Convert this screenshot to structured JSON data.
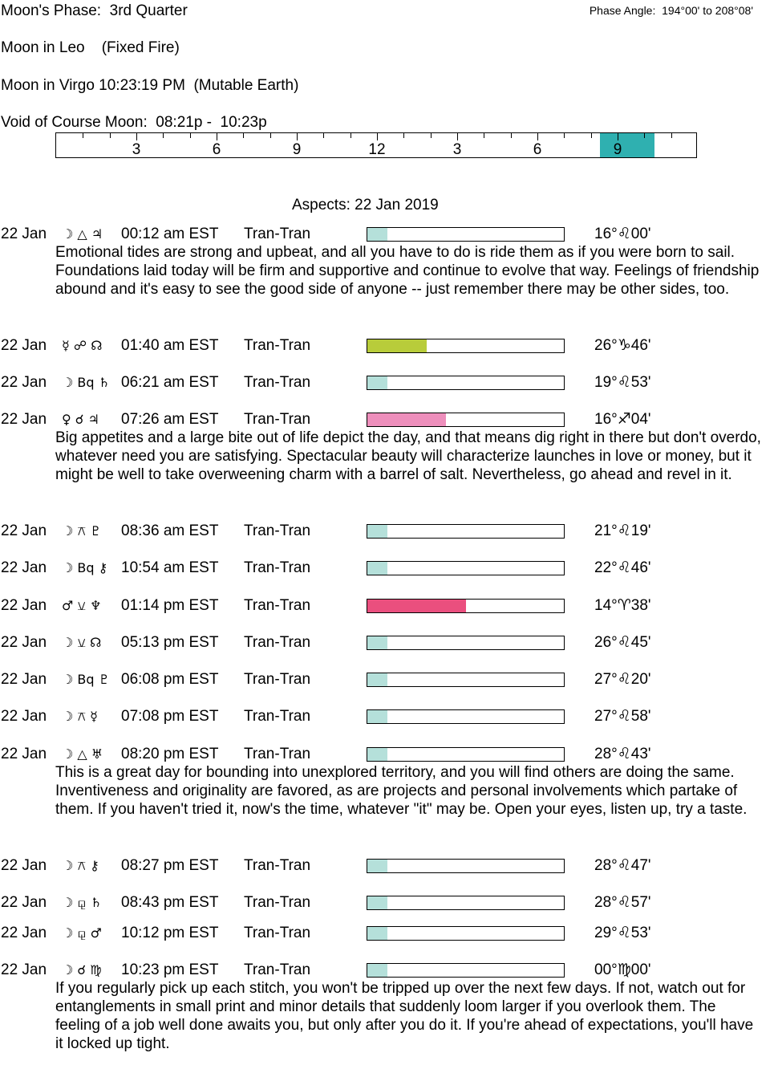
{
  "header": {
    "moon_phase": "Moon's Phase:  3rd Quarter",
    "phase_angle": "Phase Angle:  194°00' to 208°08'",
    "moon_sign_1": "Moon in Leo    (Fixed Fire)",
    "moon_sign_2": "Moon in Virgo 10:23:19 PM  (Mutable Earth)",
    "void_of_course": "Void of Course Moon:  08:21p -  10:23p"
  },
  "timeline": {
    "labels": [
      "3",
      "6",
      "9",
      "12",
      "3",
      "6",
      "9"
    ],
    "highlight_start_hour": 20.35,
    "highlight_end_hour": 22.38,
    "highlight_color": "#2fb0b0"
  },
  "aspects_title": "Aspects: 22 Jan 2019",
  "aspects": [
    {
      "date": "22 Jan",
      "glyphs": "☽ △ ♃",
      "time": "00:12 am EST",
      "type": "Tran-Tran",
      "strength": 0.1,
      "color": "#b5e0da",
      "position": "16°♌00'",
      "interpretation": "Emotional tides are strong and upbeat, and all you have to do is ride them as if you were born to sail. Foundations laid today will be firm and supportive and continue to evolve that way. Feelings of friendship abound and it's easy to see the good side of anyone -- just remember there may be other sides, too."
    },
    {
      "date": "22 Jan",
      "glyphs": "☿ ☍ ☊",
      "time": "01:40 am EST",
      "type": "Tran-Tran",
      "strength": 0.3,
      "color": "#b8cc3a",
      "position": "26°♑46'",
      "interpretation": ""
    },
    {
      "date": "22 Jan",
      "glyphs": "☽ Bq ♄",
      "time": "06:21 am EST",
      "type": "Tran-Tran",
      "strength": 0.1,
      "color": "#b5e0da",
      "position": "19°♌53'",
      "interpretation": ""
    },
    {
      "date": "22 Jan",
      "glyphs": "♀ ☌ ♃",
      "time": "07:26 am EST",
      "type": "Tran-Tran",
      "strength": 0.4,
      "color": "#ee8fbc",
      "position": "16°♐04'",
      "interpretation": "Big appetites and a large bite out of life depict the day, and that means dig right in there but don't overdo, whatever need you are satisfying. Spectacular beauty will characterize launches in love or money, but it might be well to take overweening charm with a barrel of salt. Nevertheless, go ahead and revel in it."
    },
    {
      "date": "22 Jan",
      "glyphs": "☽ ⚻ ♇",
      "time": "08:36 am EST",
      "type": "Tran-Tran",
      "strength": 0.1,
      "color": "#b5e0da",
      "position": "21°♌19'",
      "interpretation": ""
    },
    {
      "date": "22 Jan",
      "glyphs": "☽ Bq ⚷",
      "time": "10:54 am EST",
      "type": "Tran-Tran",
      "strength": 0.1,
      "color": "#b5e0da",
      "position": "22°♌46'",
      "interpretation": ""
    },
    {
      "date": "22 Jan",
      "glyphs": "♂ ⚺ ♆",
      "time": "01:14 pm EST",
      "type": "Tran-Tran",
      "strength": 0.5,
      "color": "#ea4f7e",
      "position": "14°♈38'",
      "interpretation": ""
    },
    {
      "date": "22 Jan",
      "glyphs": "☽ ⚺ ☊",
      "time": "05:13 pm EST",
      "type": "Tran-Tran",
      "strength": 0.1,
      "color": "#b5e0da",
      "position": "26°♌45'",
      "interpretation": ""
    },
    {
      "date": "22 Jan",
      "glyphs": "☽ Bq ♇",
      "time": "06:08 pm EST",
      "type": "Tran-Tran",
      "strength": 0.1,
      "color": "#b5e0da",
      "position": "27°♌20'",
      "interpretation": ""
    },
    {
      "date": "22 Jan",
      "glyphs": "☽ ⚻ ☿",
      "time": "07:08 pm EST",
      "type": "Tran-Tran",
      "strength": 0.1,
      "color": "#b5e0da",
      "position": "27°♌58'",
      "interpretation": ""
    },
    {
      "date": "22 Jan",
      "glyphs": "☽ △ ♅",
      "time": "08:20 pm EST",
      "type": "Tran-Tran",
      "strength": 0.1,
      "color": "#b5e0da",
      "position": "28°♌43'",
      "interpretation": "This is a great day for bounding into unexplored territory, and you will find others are doing the same. Inventiveness and originality are favored, as are projects and personal involvements which partake of them. If you haven't tried it, now's the time, whatever \"it\" may be. Open your eyes, listen up, try a taste."
    },
    {
      "date": "22 Jan",
      "glyphs": "☽ ⚻ ⚷",
      "time": "08:27 pm EST",
      "type": "Tran-Tran",
      "strength": 0.1,
      "color": "#b5e0da",
      "position": "28°♌47'",
      "interpretation": ""
    },
    {
      "date": "22 Jan",
      "glyphs": "☽ ⚼ ♄",
      "time": "08:43 pm EST",
      "type": "Tran-Tran",
      "strength": 0.1,
      "color": "#b5e0da",
      "position": "28°♌57'",
      "interpretation": ""
    },
    {
      "date": "22 Jan",
      "glyphs": "☽ ⚼ ♂",
      "time": "10:12 pm EST",
      "type": "Tran-Tran",
      "strength": 0.1,
      "color": "#b5e0da",
      "position": "29°♌53'",
      "interpretation": ""
    },
    {
      "date": "22 Jan",
      "glyphs": "☽ ☌ ♍",
      "time": "10:23 pm EST",
      "type": "Tran-Tran",
      "strength": 0.1,
      "color": "#b5e0da",
      "position": "00°♍00'",
      "interpretation": "If you regularly pick up each stitch, you won't be tripped up over the next few days. If not, watch out for entanglements in small print and minor details that suddenly loom larger if you overlook them. The feeling of a job well done awaits you, but only after you do it. If you're ahead of expectations, you'll have it locked up tight."
    }
  ]
}
